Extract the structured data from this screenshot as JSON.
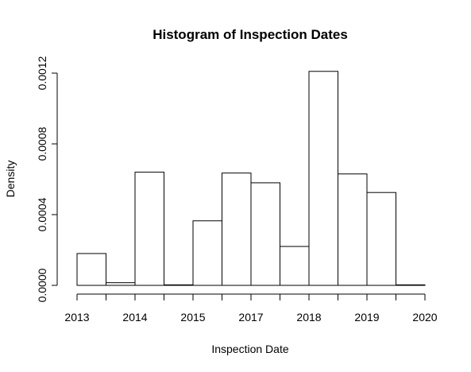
{
  "chart_data": {
    "type": "bar",
    "title": "Histogram of Inspection Dates",
    "xlabel": "Inspection Date",
    "ylabel": "Density",
    "x_ticks": [
      "2013",
      "2014",
      "2015",
      "2017",
      "2018",
      "2019",
      "2020"
    ],
    "y_ticks": [
      "0.0000",
      "0.0004",
      "0.0008",
      "0.0012"
    ],
    "ylim": [
      0,
      0.0012
    ],
    "bins": 12,
    "values": [
      0.00018,
      1.5e-05,
      0.00064,
      3e-06,
      0.000365,
      0.000635,
      0.00058,
      0.00022,
      0.00121,
      0.00063,
      0.000525,
      3e-06
    ],
    "grid": false,
    "bar_color": "#ffffff",
    "edge_color": "#000000"
  }
}
